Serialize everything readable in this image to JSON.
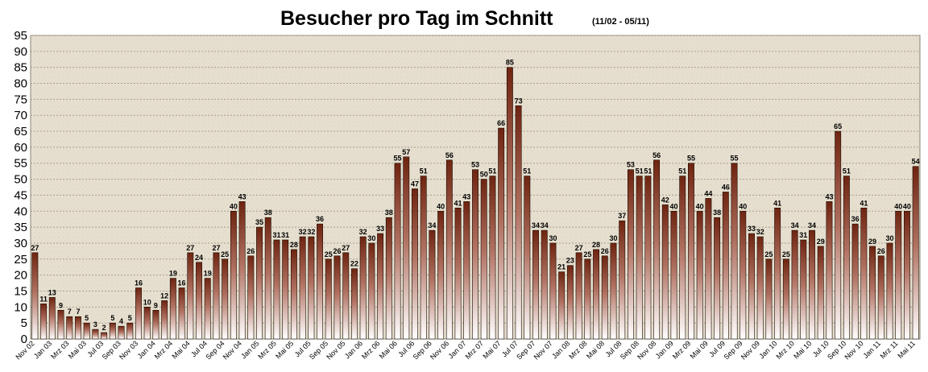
{
  "chart_data": {
    "type": "bar",
    "title": "Besucher pro Tag im Schnitt",
    "subtitle": "(11/02 - 05/11)",
    "xlabel": "",
    "ylabel": "",
    "ylim": [
      0,
      95
    ],
    "yticks": [
      0,
      5,
      10,
      15,
      20,
      25,
      30,
      35,
      40,
      45,
      50,
      55,
      60,
      65,
      70,
      75,
      80,
      85,
      90,
      95
    ],
    "grid": true,
    "x_tick_labels": [
      "Nov 02",
      "Jan 03",
      "Mrz 03",
      "Mai 03",
      "Jul 03",
      "Sep 03",
      "Nov 03",
      "Jan 04",
      "Mrz 04",
      "Mai 04",
      "Jul 04",
      "Sep 04",
      "Nov 04",
      "Jan 05",
      "Mrz 05",
      "Mai 05",
      "Jul 05",
      "Sep 05",
      "Nov 05",
      "Jan 06",
      "Mrz 06",
      "Mai 06",
      "Jul 06",
      "Sep 06",
      "Nov 06",
      "Jan 07",
      "Mrz 07",
      "Mai 07",
      "Jul 07",
      "Sep 07",
      "Nov 07",
      "Jan 08",
      "Mrz 08",
      "Mai 08",
      "Jul 08",
      "Sep 08",
      "Nov 08",
      "Jan 09",
      "Mrz 09",
      "Mai 09",
      "Jul 09",
      "Sep 09",
      "Nov 09",
      "Jan 10",
      "Mrz 10",
      "Mai 10",
      "Jul 10",
      "Sep 10",
      "Nov 10",
      "Jan 11",
      "Mrz 11",
      "Mai 11"
    ],
    "values": [
      27,
      11,
      13,
      9,
      7,
      7,
      5,
      3,
      2,
      5,
      4,
      5,
      16,
      10,
      9,
      12,
      19,
      16,
      27,
      24,
      19,
      27,
      25,
      40,
      43,
      26,
      35,
      38,
      31,
      31,
      28,
      32,
      32,
      36,
      25,
      26,
      27,
      22,
      32,
      30,
      33,
      38,
      55,
      57,
      47,
      51,
      34,
      40,
      56,
      41,
      43,
      53,
      50,
      51,
      66,
      85,
      73,
      51,
      34,
      34,
      30,
      21,
      23,
      27,
      25,
      28,
      26,
      30,
      37,
      53,
      51,
      51,
      56,
      42,
      40,
      51,
      55,
      40,
      44,
      38,
      46,
      55,
      40,
      33,
      32,
      25,
      41,
      25,
      34,
      31,
      34,
      29,
      43,
      65,
      51,
      36,
      41,
      29,
      26,
      30,
      40,
      40,
      54
    ],
    "colors": {
      "bar_top": "#7a2a14",
      "bar_bottom": "#ffffff",
      "bar_edge": "#1a0a04",
      "grid": "#a89e8c",
      "plot_bg": "#e8e2d2"
    }
  }
}
